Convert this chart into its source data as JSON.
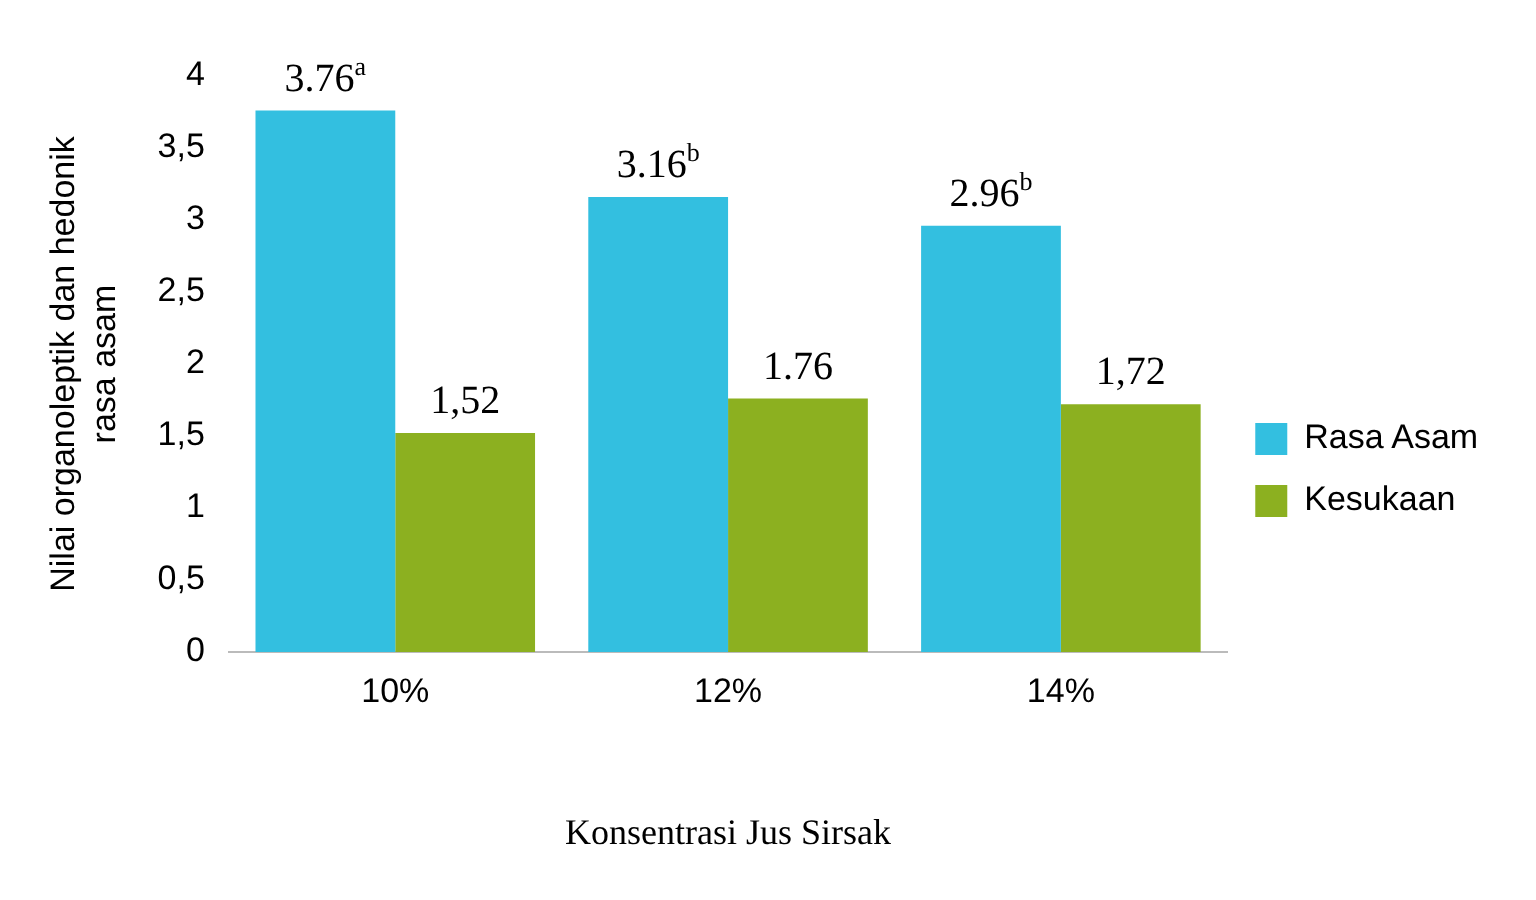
{
  "chart_data": {
    "type": "bar",
    "xlabel": "Konsentrasi Jus Sirsak",
    "ylabel": "Nilai organoleptik dan hedonik rasa asam",
    "categories": [
      "10%",
      "12%",
      "14%"
    ],
    "series": [
      {
        "name": "Rasa Asam",
        "color": "#33bfe0",
        "values": [
          3.76,
          3.16,
          2.96
        ],
        "value_labels": [
          "3.76$^{a}$",
          "3.16$^{b}$",
          "2.96$^{b}$"
        ]
      },
      {
        "name": "Kesukaan",
        "color": "#8cb020",
        "values": [
          1.52,
          1.76,
          1.72
        ],
        "value_labels": [
          "1,52",
          "1.76",
          "1,72"
        ]
      }
    ],
    "ylim": [
      0,
      4
    ],
    "yticks": [
      0,
      {
        "value": 0.5,
        "label": "0,5"
      },
      1,
      {
        "value": 1.5,
        "label": "1,5"
      },
      2,
      {
        "value": 2.5,
        "label": "2,5"
      },
      3,
      {
        "value": 3.5,
        "label": "3,5"
      },
      4
    ],
    "grid": false,
    "legend": "right"
  }
}
